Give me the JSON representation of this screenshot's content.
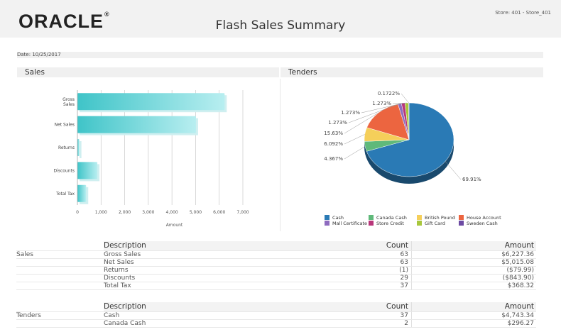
{
  "header": {
    "logo_text": "ORACLE",
    "logo_mark": "®",
    "title": "Flash Sales Summary",
    "store": "Store: 401 - Store_401"
  },
  "date_label": "Date: 10/25/2017",
  "sections": {
    "sales_heading": "Sales",
    "tenders_heading": "Tenders"
  },
  "chart_data": [
    {
      "type": "bar",
      "orientation": "horizontal",
      "categories": [
        "Gross Sales",
        "Net Sales",
        "Returns",
        "Discounts",
        "Total Tax"
      ],
      "values": [
        6227.36,
        5015.08,
        79.99,
        843.9,
        368.32
      ],
      "xlabel": "Amount",
      "xlim": [
        0,
        7000
      ],
      "xticks": [
        "0",
        "1,000",
        "2,000",
        "3,000",
        "4,000",
        "5,000",
        "6,000",
        "7,000"
      ],
      "grid": true,
      "color": "#5ed3d6"
    },
    {
      "type": "pie",
      "categories": [
        "Cash",
        "Canada Cash",
        "British Pound",
        "House Account",
        "Mall Certificate",
        "Store Credit",
        "Gift Card",
        "Sweden Cash"
      ],
      "values": [
        69.91,
        4.367,
        6.092,
        15.63,
        1.273,
        1.273,
        1.273,
        0.1722
      ],
      "labels": [
        "69.91%",
        "4.367%",
        "6.092%",
        "15.63%",
        "1.273%",
        "1.273%",
        "1.273%",
        "0.1722%"
      ],
      "colors": [
        "#2a7ab5",
        "#5fb97a",
        "#f5cf5a",
        "#ec6540",
        "#8e6bbf",
        "#b8367a",
        "#a8c73c",
        "#6c4aa3"
      ],
      "legend": "bottom"
    }
  ],
  "sales_table": {
    "group": "Sales",
    "headers": {
      "description": "Description",
      "count": "Count",
      "amount": "Amount"
    },
    "rows": [
      {
        "description": "Gross Sales",
        "count": "63",
        "amount": "$6,227.36"
      },
      {
        "description": "Net Sales",
        "count": "63",
        "amount": "$5,015.08"
      },
      {
        "description": "Returns",
        "count": "(1)",
        "amount": "($79.99)"
      },
      {
        "description": "Discounts",
        "count": "29",
        "amount": "($843.90)"
      },
      {
        "description": "Total Tax",
        "count": "37",
        "amount": "$368.32"
      }
    ]
  },
  "tenders_table": {
    "group": "Tenders",
    "headers": {
      "description": "Description",
      "count": "Count",
      "amount": "Amount"
    },
    "rows": [
      {
        "description": "Cash",
        "count": "37",
        "amount": "$4,743.34"
      },
      {
        "description": "Canada Cash",
        "count": "2",
        "amount": "$296.27"
      }
    ]
  }
}
